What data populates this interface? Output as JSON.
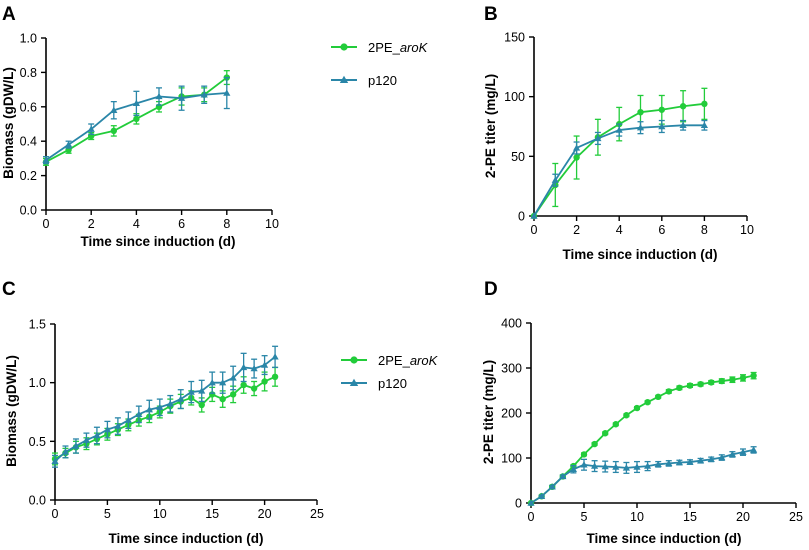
{
  "colors": {
    "green": "#22cc3a",
    "teal": "#2a86a8",
    "axis": "#000000"
  },
  "chart_data": [
    {
      "panel": "A",
      "type": "line",
      "xlabel": "Time since induction (d)",
      "ylabel": "Biomass (gDW/L)",
      "xlim": [
        0,
        10
      ],
      "ylim": [
        0,
        1.0
      ],
      "xticks": [
        0,
        2,
        4,
        6,
        8,
        10
      ],
      "xtick_labels": [
        "0",
        "2",
        "4",
        "6",
        "8",
        "10"
      ],
      "yticks": [
        0,
        0.2,
        0.4,
        0.6,
        0.8,
        1.0
      ],
      "ytick_labels": [
        "0.0",
        "0.2",
        "0.4",
        "0.6",
        "0.8",
        "1.0"
      ],
      "legend": "right",
      "series": [
        {
          "name": "2PE_aroK",
          "name_main": "2PE_",
          "name_italic": "aroK",
          "color": "green",
          "marker": "circle",
          "x": [
            0,
            1,
            2,
            3,
            4,
            5,
            6,
            7,
            8
          ],
          "y": [
            0.28,
            0.35,
            0.43,
            0.46,
            0.53,
            0.6,
            0.66,
            0.67,
            0.77
          ],
          "err": [
            0.02,
            0.02,
            0.02,
            0.03,
            0.03,
            0.03,
            0.05,
            0.04,
            0.04
          ]
        },
        {
          "name": "p120",
          "color": "teal",
          "marker": "triangle",
          "x": [
            0,
            1,
            2,
            3,
            4,
            5,
            6,
            7,
            8
          ],
          "y": [
            0.29,
            0.38,
            0.47,
            0.58,
            0.62,
            0.66,
            0.65,
            0.67,
            0.68
          ],
          "err": [
            0.02,
            0.02,
            0.03,
            0.05,
            0.07,
            0.05,
            0.07,
            0.05,
            0.09
          ]
        }
      ]
    },
    {
      "panel": "B",
      "type": "line",
      "xlabel": "Time since induction (d)",
      "ylabel": "2-PE titer (mg/L)",
      "xlim": [
        0,
        10
      ],
      "ylim": [
        0,
        150
      ],
      "xticks": [
        0,
        2,
        4,
        6,
        8,
        10
      ],
      "xtick_labels": [
        "0",
        "2",
        "4",
        "6",
        "8",
        "10"
      ],
      "yticks": [
        0,
        50,
        100,
        150
      ],
      "ytick_labels": [
        "0",
        "50",
        "100",
        "150"
      ],
      "legend": "",
      "series": [
        {
          "name": "2PE_aroK",
          "color": "green",
          "marker": "circle",
          "x": [
            0,
            1,
            2,
            3,
            4,
            5,
            6,
            7,
            8
          ],
          "y": [
            0,
            26,
            49,
            66,
            77,
            87,
            89,
            92,
            94
          ],
          "err": [
            0,
            18,
            18,
            15,
            14,
            14,
            12,
            13,
            13
          ]
        },
        {
          "name": "p120",
          "color": "teal",
          "marker": "triangle",
          "x": [
            0,
            1,
            2,
            3,
            4,
            5,
            6,
            7,
            8
          ],
          "y": [
            0,
            30,
            57,
            65,
            72,
            74,
            75,
            76,
            76
          ],
          "err": [
            0,
            5,
            5,
            5,
            5,
            5,
            5,
            4,
            4
          ]
        }
      ]
    },
    {
      "panel": "C",
      "type": "line",
      "xlabel": "Time since induction (d)",
      "ylabel": "Biomass (gDW/L)",
      "xlim": [
        0,
        25
      ],
      "ylim": [
        0,
        1.5
      ],
      "xticks": [
        0,
        5,
        10,
        15,
        20,
        25
      ],
      "xtick_labels": [
        "0",
        "5",
        "10",
        "15",
        "20",
        "25"
      ],
      "yticks": [
        0,
        0.5,
        1.0,
        1.5
      ],
      "ytick_labels": [
        "0.0",
        "0.5",
        "1.0",
        "1.5"
      ],
      "legend": "right",
      "series": [
        {
          "name": "2PE_aroK",
          "name_main": "2PE_",
          "name_italic": "aroK",
          "color": "green",
          "marker": "circle",
          "x": [
            0,
            1,
            2,
            3,
            4,
            5,
            6,
            7,
            8,
            9,
            10,
            11,
            12,
            13,
            14,
            15,
            16,
            17,
            18,
            19,
            20,
            21
          ],
          "y": [
            0.35,
            0.4,
            0.45,
            0.48,
            0.52,
            0.56,
            0.6,
            0.64,
            0.68,
            0.71,
            0.75,
            0.8,
            0.84,
            0.87,
            0.81,
            0.9,
            0.86,
            0.9,
            0.98,
            0.95,
            1.01,
            1.05
          ],
          "err": [
            0.05,
            0.04,
            0.05,
            0.05,
            0.05,
            0.05,
            0.05,
            0.05,
            0.05,
            0.05,
            0.05,
            0.06,
            0.06,
            0.06,
            0.06,
            0.06,
            0.07,
            0.07,
            0.07,
            0.06,
            0.08,
            0.08
          ]
        },
        {
          "name": "p120",
          "color": "teal",
          "marker": "triangle",
          "x": [
            0,
            1,
            2,
            3,
            4,
            5,
            6,
            7,
            8,
            9,
            10,
            11,
            12,
            13,
            14,
            15,
            16,
            17,
            18,
            19,
            20,
            21
          ],
          "y": [
            0.33,
            0.41,
            0.46,
            0.51,
            0.55,
            0.6,
            0.63,
            0.68,
            0.73,
            0.77,
            0.79,
            0.82,
            0.86,
            0.92,
            0.93,
            1.0,
            1.0,
            1.04,
            1.13,
            1.12,
            1.15,
            1.22
          ],
          "err": [
            0.05,
            0.05,
            0.06,
            0.06,
            0.07,
            0.07,
            0.07,
            0.07,
            0.07,
            0.08,
            0.07,
            0.07,
            0.08,
            0.09,
            0.09,
            0.09,
            0.09,
            0.1,
            0.12,
            0.08,
            0.08,
            0.09
          ]
        }
      ]
    },
    {
      "panel": "D",
      "type": "line",
      "xlabel": "Time since induction (d)",
      "ylabel": "2-PE titer (mg/L)",
      "xlim": [
        0,
        25
      ],
      "ylim": [
        0,
        400
      ],
      "xticks": [
        0,
        5,
        10,
        15,
        20,
        25
      ],
      "xtick_labels": [
        "0",
        "5",
        "10",
        "15",
        "20",
        "25"
      ],
      "yticks": [
        0,
        100,
        200,
        300,
        400
      ],
      "ytick_labels": [
        "0",
        "100",
        "200",
        "300",
        "400"
      ],
      "legend": "",
      "series": [
        {
          "name": "2PE_aroK",
          "color": "green",
          "marker": "circle",
          "x": [
            0,
            1,
            2,
            3,
            4,
            5,
            6,
            7,
            8,
            9,
            10,
            11,
            12,
            13,
            14,
            15,
            16,
            17,
            18,
            19,
            20,
            21
          ],
          "y": [
            0,
            15,
            36,
            59,
            82,
            108,
            131,
            155,
            175,
            195,
            211,
            224,
            236,
            248,
            256,
            261,
            264,
            268,
            271,
            274,
            278,
            283
          ],
          "err": [
            0,
            2,
            3,
            3,
            3,
            3,
            3,
            3,
            3,
            3,
            3,
            3,
            3,
            4,
            4,
            4,
            4,
            4,
            5,
            6,
            7,
            7
          ]
        },
        {
          "name": "p120",
          "color": "teal",
          "marker": "triangle",
          "x": [
            0,
            1,
            2,
            3,
            4,
            5,
            6,
            7,
            8,
            9,
            10,
            11,
            12,
            13,
            14,
            15,
            16,
            17,
            18,
            19,
            20,
            21
          ],
          "y": [
            0,
            15,
            36,
            59,
            75,
            85,
            82,
            81,
            80,
            78,
            80,
            82,
            86,
            88,
            90,
            91,
            94,
            97,
            101,
            108,
            113,
            118
          ],
          "err": [
            0,
            2,
            3,
            3,
            8,
            12,
            12,
            12,
            12,
            12,
            12,
            10,
            6,
            6,
            5,
            5,
            5,
            5,
            6,
            6,
            7,
            7
          ]
        }
      ]
    }
  ]
}
